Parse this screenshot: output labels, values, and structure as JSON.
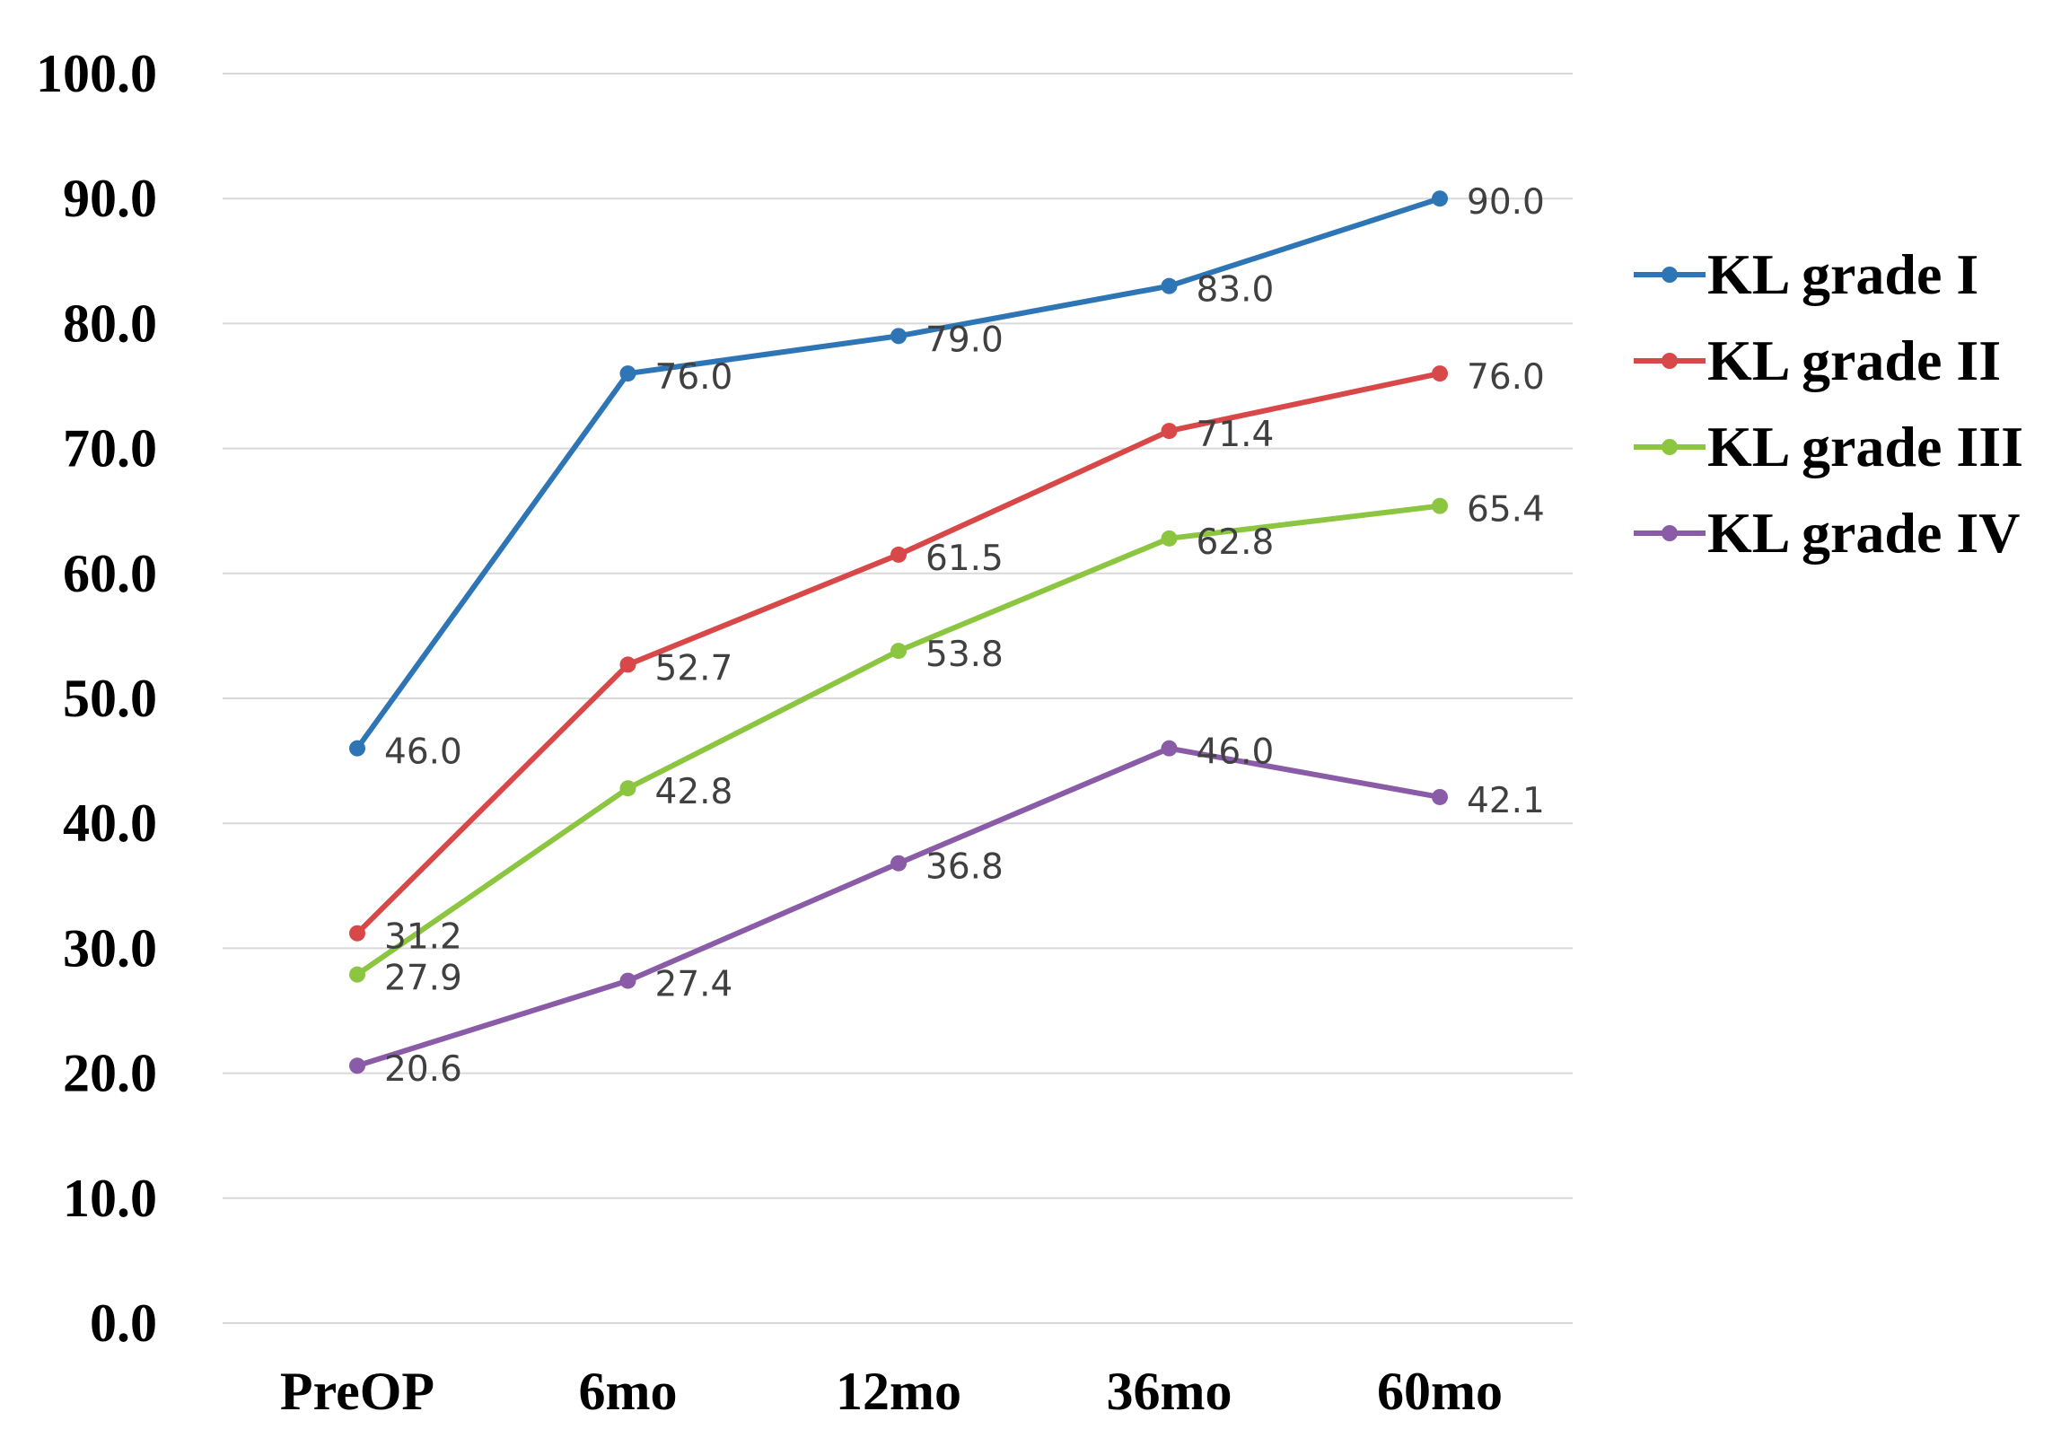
{
  "chart_data": {
    "type": "line",
    "categories": [
      "PreOP",
      "6mo",
      "12mo",
      "36mo",
      "60mo"
    ],
    "ylim": [
      0,
      100
    ],
    "yticks": [
      "0.0",
      "10.0",
      "20.0",
      "30.0",
      "40.0",
      "50.0",
      "60.0",
      "70.0",
      "80.0",
      "90.0",
      "100.0"
    ],
    "grid": true,
    "legend_position": "right",
    "series": [
      {
        "name": "KL grade I",
        "color": "#2e75b6",
        "values": [
          46.0,
          76.0,
          79.0,
          83.0,
          90.0
        ],
        "labels": [
          "46.0",
          "76.0",
          "79.0",
          "83.0",
          "90.0"
        ]
      },
      {
        "name": "KL grade II",
        "color": "#d94848",
        "values": [
          31.2,
          52.7,
          61.5,
          71.4,
          76.0
        ],
        "labels": [
          "31.2",
          "52.7",
          "61.5",
          "71.4",
          "76.0"
        ]
      },
      {
        "name": "KL grade III",
        "color": "#8cc641",
        "values": [
          27.9,
          42.8,
          53.8,
          62.8,
          65.4
        ],
        "labels": [
          "27.9",
          "42.8",
          "53.8",
          "62.8",
          "65.4"
        ]
      },
      {
        "name": "KL grade IV",
        "color": "#8a5ca8",
        "values": [
          20.6,
          27.4,
          36.8,
          46.0,
          42.1
        ],
        "labels": [
          "20.6",
          "27.4",
          "36.8",
          "46.0",
          "42.1"
        ]
      }
    ]
  }
}
